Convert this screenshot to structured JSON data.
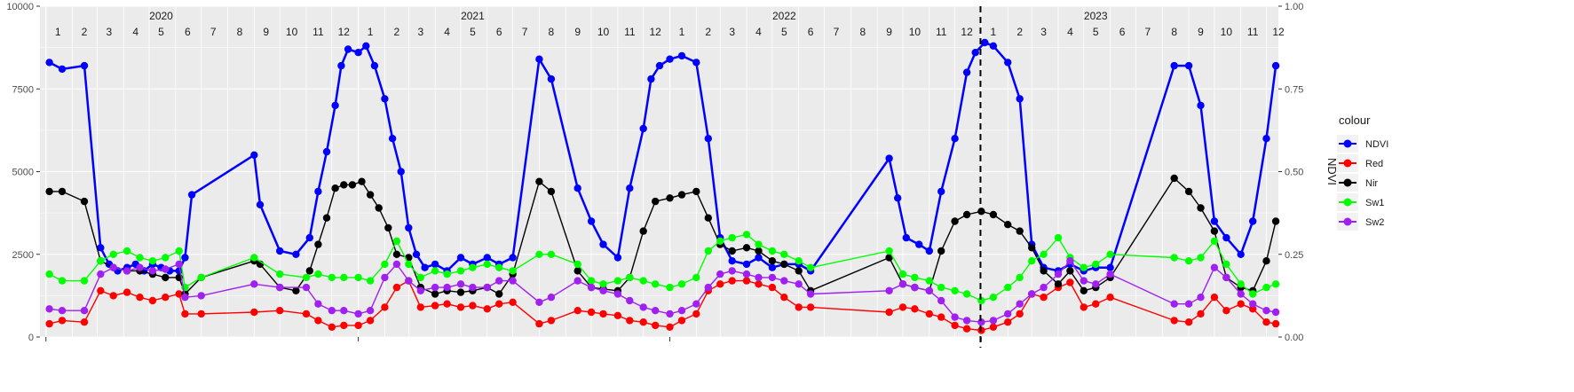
{
  "chart_data": {
    "type": "line",
    "xlabel": "",
    "ylabel_left": "",
    "ylabel_right": "NDVI",
    "y_left_lim": [
      0,
      10000
    ],
    "y_left_ticks": [
      "0",
      "2500",
      "5000",
      "7500",
      "10000"
    ],
    "y_right_lim": [
      0,
      1
    ],
    "y_right_ticks": [
      "0.00",
      "0.25",
      "0.50",
      "0.75",
      "1.00"
    ],
    "x_range": [
      "2019-12-25",
      "2023-12-15"
    ],
    "year_labels": [
      {
        "label": "2020",
        "date": "2020-05-15"
      },
      {
        "label": "2021",
        "date": "2021-05-15"
      },
      {
        "label": "2022",
        "date": "2022-05-15"
      },
      {
        "label": "2023",
        "date": "2023-05-15"
      }
    ],
    "month_labels": [
      "1",
      "2",
      "3",
      "4",
      "5",
      "6",
      "7",
      "8",
      "9",
      "10",
      "11",
      "12"
    ],
    "vline_date": "2022-12-31",
    "grid": true,
    "legend": {
      "title": "colour",
      "position": "right"
    },
    "series": [
      {
        "name": "NDVI",
        "color": "#0000FF",
        "axis": "right",
        "x": [
          "2020-01-05",
          "2020-01-20",
          "2020-02-15",
          "2020-03-05",
          "2020-03-15",
          "2020-03-25",
          "2020-04-05",
          "2020-04-15",
          "2020-04-25",
          "2020-05-05",
          "2020-05-15",
          "2020-05-25",
          "2020-06-05",
          "2020-06-12",
          "2020-06-20",
          "2020-09-01",
          "2020-09-08",
          "2020-10-01",
          "2020-10-20",
          "2020-11-05",
          "2020-11-15",
          "2020-11-25",
          "2020-12-05",
          "2020-12-12",
          "2020-12-20",
          "2021-01-01",
          "2021-01-10",
          "2021-01-20",
          "2021-02-01",
          "2021-02-10",
          "2021-02-20",
          "2021-03-01",
          "2021-03-10",
          "2021-03-20",
          "2021-04-01",
          "2021-04-15",
          "2021-05-01",
          "2021-05-15",
          "2021-06-01",
          "2021-06-15",
          "2021-07-01",
          "2021-08-01",
          "2021-08-15",
          "2021-09-15",
          "2021-10-01",
          "2021-10-15",
          "2021-11-01",
          "2021-11-15",
          "2021-12-01",
          "2021-12-10",
          "2021-12-20",
          "2022-01-01",
          "2022-01-15",
          "2022-02-01",
          "2022-02-15",
          "2022-03-01",
          "2022-03-15",
          "2022-04-01",
          "2022-04-15",
          "2022-05-01",
          "2022-05-15",
          "2022-06-01",
          "2022-06-15",
          "2022-09-15",
          "2022-09-25",
          "2022-10-05",
          "2022-10-20",
          "2022-11-01",
          "2022-11-15",
          "2022-12-01",
          "2022-12-15",
          "2022-12-25",
          "2023-01-05",
          "2023-01-15",
          "2023-02-01",
          "2023-02-15",
          "2023-03-01",
          "2023-03-15",
          "2023-04-01",
          "2023-04-15",
          "2023-05-01",
          "2023-05-15",
          "2023-06-01",
          "2023-08-15",
          "2023-09-01",
          "2023-09-15",
          "2023-10-01",
          "2023-10-15",
          "2023-11-01",
          "2023-11-15",
          "2023-12-01",
          "2023-12-12"
        ],
        "values": [
          0.83,
          0.81,
          0.82,
          0.27,
          0.22,
          0.2,
          0.21,
          0.22,
          0.2,
          0.22,
          0.21,
          0.2,
          0.2,
          0.24,
          0.43,
          0.55,
          0.4,
          0.26,
          0.25,
          0.3,
          0.44,
          0.56,
          0.7,
          0.82,
          0.87,
          0.86,
          0.88,
          0.82,
          0.72,
          0.6,
          0.5,
          0.33,
          0.25,
          0.21,
          0.22,
          0.2,
          0.24,
          0.22,
          0.24,
          0.22,
          0.24,
          0.84,
          0.78,
          0.45,
          0.35,
          0.28,
          0.24,
          0.45,
          0.63,
          0.78,
          0.82,
          0.84,
          0.85,
          0.83,
          0.6,
          0.3,
          0.23,
          0.22,
          0.24,
          0.21,
          0.22,
          0.22,
          0.2,
          0.54,
          0.42,
          0.3,
          0.28,
          0.26,
          0.44,
          0.6,
          0.8,
          0.86,
          0.89,
          0.88,
          0.83,
          0.72,
          0.28,
          0.21,
          0.2,
          0.22,
          0.2,
          0.21,
          0.21,
          0.82,
          0.82,
          0.7,
          0.35,
          0.3,
          0.25,
          0.35,
          0.6,
          0.82
        ]
      },
      {
        "name": "Red",
        "color": "#FF0000",
        "axis": "left",
        "x": [
          "2020-01-05",
          "2020-01-20",
          "2020-02-15",
          "2020-03-05",
          "2020-03-20",
          "2020-04-05",
          "2020-04-20",
          "2020-05-05",
          "2020-05-20",
          "2020-06-05",
          "2020-06-12",
          "2020-07-01",
          "2020-09-01",
          "2020-10-01",
          "2020-11-01",
          "2020-11-15",
          "2020-12-01",
          "2020-12-15",
          "2021-01-01",
          "2021-01-15",
          "2021-02-01",
          "2021-02-15",
          "2021-03-01",
          "2021-03-15",
          "2021-04-01",
          "2021-04-15",
          "2021-05-01",
          "2021-05-15",
          "2021-06-01",
          "2021-06-15",
          "2021-07-01",
          "2021-08-01",
          "2021-08-15",
          "2021-09-15",
          "2021-10-01",
          "2021-10-15",
          "2021-11-01",
          "2021-11-15",
          "2021-12-01",
          "2021-12-15",
          "2022-01-01",
          "2022-01-15",
          "2022-02-01",
          "2022-02-15",
          "2022-03-01",
          "2022-03-15",
          "2022-04-01",
          "2022-04-15",
          "2022-05-01",
          "2022-05-15",
          "2022-06-01",
          "2022-06-15",
          "2022-09-15",
          "2022-10-01",
          "2022-10-15",
          "2022-11-01",
          "2022-11-15",
          "2022-12-01",
          "2022-12-15",
          "2023-01-01",
          "2023-01-15",
          "2023-02-01",
          "2023-02-15",
          "2023-03-01",
          "2023-03-15",
          "2023-04-01",
          "2023-04-15",
          "2023-05-01",
          "2023-05-15",
          "2023-06-01",
          "2023-08-15",
          "2023-09-01",
          "2023-09-15",
          "2023-10-01",
          "2023-10-15",
          "2023-11-01",
          "2023-11-15",
          "2023-12-01",
          "2023-12-12"
        ],
        "values": [
          400,
          500,
          450,
          1400,
          1250,
          1350,
          1200,
          1100,
          1200,
          1300,
          700,
          700,
          750,
          800,
          700,
          500,
          300,
          350,
          350,
          500,
          900,
          1500,
          1700,
          900,
          950,
          1000,
          900,
          950,
          850,
          1000,
          1050,
          400,
          500,
          800,
          750,
          700,
          650,
          500,
          450,
          350,
          300,
          500,
          700,
          1400,
          1600,
          1700,
          1700,
          1600,
          1500,
          1200,
          900,
          900,
          750,
          900,
          850,
          700,
          600,
          350,
          250,
          200,
          300,
          450,
          700,
          1300,
          1200,
          1500,
          1650,
          900,
          1000,
          1200,
          500,
          450,
          700,
          1200,
          800,
          1000,
          850,
          450,
          400
        ]
      },
      {
        "name": "Nir",
        "color": "#000000",
        "axis": "left",
        "x": [
          "2020-01-05",
          "2020-01-20",
          "2020-02-15",
          "2020-03-05",
          "2020-03-20",
          "2020-04-05",
          "2020-04-20",
          "2020-05-05",
          "2020-05-20",
          "2020-06-05",
          "2020-06-12",
          "2020-07-01",
          "2020-09-01",
          "2020-09-08",
          "2020-10-01",
          "2020-10-20",
          "2020-11-05",
          "2020-11-15",
          "2020-11-25",
          "2020-12-05",
          "2020-12-15",
          "2020-12-25",
          "2021-01-05",
          "2021-01-15",
          "2021-01-25",
          "2021-02-05",
          "2021-02-15",
          "2021-03-01",
          "2021-03-15",
          "2021-04-01",
          "2021-04-15",
          "2021-05-01",
          "2021-05-15",
          "2021-06-01",
          "2021-06-15",
          "2021-07-01",
          "2021-08-01",
          "2021-08-15",
          "2021-09-15",
          "2021-10-01",
          "2021-10-15",
          "2021-11-01",
          "2021-11-15",
          "2021-12-01",
          "2021-12-15",
          "2022-01-01",
          "2022-01-15",
          "2022-02-01",
          "2022-02-15",
          "2022-03-01",
          "2022-03-15",
          "2022-04-01",
          "2022-04-15",
          "2022-05-01",
          "2022-05-15",
          "2022-06-01",
          "2022-06-15",
          "2022-09-15",
          "2022-10-01",
          "2022-10-15",
          "2022-11-01",
          "2022-11-15",
          "2022-12-01",
          "2022-12-15",
          "2023-01-01",
          "2023-01-15",
          "2023-02-01",
          "2023-02-15",
          "2023-03-01",
          "2023-03-15",
          "2023-04-01",
          "2023-04-15",
          "2023-05-01",
          "2023-05-15",
          "2023-06-01",
          "2023-08-15",
          "2023-09-01",
          "2023-09-15",
          "2023-10-01",
          "2023-10-15",
          "2023-11-01",
          "2023-11-15",
          "2023-12-01",
          "2023-12-12"
        ],
        "values": [
          4400,
          4400,
          4100,
          2300,
          2100,
          2000,
          2000,
          1900,
          1800,
          1800,
          1300,
          1800,
          2300,
          2200,
          1500,
          1400,
          2000,
          2800,
          3600,
          4500,
          4600,
          4600,
          4700,
          4300,
          3900,
          3300,
          2500,
          2400,
          1500,
          1300,
          1400,
          1350,
          1400,
          1500,
          1300,
          1900,
          4700,
          4400,
          2000,
          1500,
          1450,
          1400,
          1800,
          3200,
          4100,
          4200,
          4300,
          4400,
          3600,
          2800,
          2600,
          2700,
          2600,
          2300,
          2200,
          2000,
          1400,
          2400,
          1600,
          1500,
          1400,
          2600,
          3500,
          3700,
          3800,
          3700,
          3400,
          3200,
          2700,
          2000,
          1600,
          2000,
          1400,
          1500,
          1800,
          4800,
          4400,
          3900,
          3200,
          1800,
          1500,
          1400,
          2300,
          3500
        ]
      },
      {
        "name": "Sw1",
        "color": "#00FF00",
        "axis": "left",
        "x": [
          "2020-01-05",
          "2020-01-20",
          "2020-02-15",
          "2020-03-05",
          "2020-03-20",
          "2020-04-05",
          "2020-04-20",
          "2020-05-05",
          "2020-05-20",
          "2020-06-05",
          "2020-06-12",
          "2020-07-01",
          "2020-09-01",
          "2020-10-01",
          "2020-11-01",
          "2020-11-15",
          "2020-12-01",
          "2020-12-15",
          "2021-01-01",
          "2021-01-15",
          "2021-02-01",
          "2021-02-15",
          "2021-03-01",
          "2021-03-15",
          "2021-04-01",
          "2021-04-15",
          "2021-05-01",
          "2021-05-15",
          "2021-06-01",
          "2021-06-15",
          "2021-07-01",
          "2021-08-01",
          "2021-08-15",
          "2021-09-15",
          "2021-10-01",
          "2021-10-15",
          "2021-11-01",
          "2021-11-15",
          "2021-12-01",
          "2021-12-15",
          "2022-01-01",
          "2022-01-15",
          "2022-02-01",
          "2022-02-15",
          "2022-03-01",
          "2022-03-15",
          "2022-04-01",
          "2022-04-15",
          "2022-05-01",
          "2022-05-15",
          "2022-06-01",
          "2022-06-15",
          "2022-09-15",
          "2022-10-01",
          "2022-10-15",
          "2022-11-01",
          "2022-11-15",
          "2022-12-01",
          "2022-12-15",
          "2023-01-01",
          "2023-01-15",
          "2023-02-01",
          "2023-02-15",
          "2023-03-01",
          "2023-03-15",
          "2023-04-01",
          "2023-04-15",
          "2023-05-01",
          "2023-05-15",
          "2023-06-01",
          "2023-08-15",
          "2023-09-01",
          "2023-09-15",
          "2023-10-01",
          "2023-10-15",
          "2023-11-01",
          "2023-11-15",
          "2023-12-01",
          "2023-12-12"
        ],
        "values": [
          1900,
          1700,
          1700,
          2300,
          2500,
          2600,
          2400,
          2300,
          2400,
          2600,
          1500,
          1800,
          2400,
          1900,
          1800,
          1900,
          1800,
          1800,
          1800,
          1700,
          2200,
          2900,
          2200,
          1800,
          2000,
          1900,
          2000,
          2100,
          2200,
          2100,
          2000,
          2500,
          2500,
          2200,
          1700,
          1600,
          1700,
          1800,
          1700,
          1600,
          1500,
          1600,
          1800,
          2600,
          2900,
          3000,
          3100,
          2800,
          2600,
          2500,
          2300,
          2100,
          2600,
          1900,
          1800,
          1700,
          1500,
          1400,
          1300,
          1100,
          1200,
          1500,
          1800,
          2300,
          2500,
          3000,
          2400,
          2100,
          2200,
          2500,
          2400,
          2300,
          2400,
          2900,
          2200,
          1600,
          1300,
          1500,
          1600
        ]
      },
      {
        "name": "Sw2",
        "color": "#A020F0",
        "axis": "left",
        "x": [
          "2020-01-05",
          "2020-01-20",
          "2020-02-15",
          "2020-03-05",
          "2020-03-20",
          "2020-04-05",
          "2020-04-20",
          "2020-05-05",
          "2020-05-20",
          "2020-06-05",
          "2020-06-12",
          "2020-07-01",
          "2020-09-01",
          "2020-10-01",
          "2020-11-01",
          "2020-11-15",
          "2020-12-01",
          "2020-12-15",
          "2021-01-01",
          "2021-01-15",
          "2021-02-01",
          "2021-02-15",
          "2021-03-01",
          "2021-03-15",
          "2021-04-01",
          "2021-04-15",
          "2021-05-01",
          "2021-05-15",
          "2021-06-01",
          "2021-06-15",
          "2021-07-01",
          "2021-08-01",
          "2021-08-15",
          "2021-09-15",
          "2021-10-01",
          "2021-10-15",
          "2021-11-01",
          "2021-11-15",
          "2021-12-01",
          "2021-12-15",
          "2022-01-01",
          "2022-01-15",
          "2022-02-01",
          "2022-02-15",
          "2022-03-01",
          "2022-03-15",
          "2022-04-01",
          "2022-04-15",
          "2022-05-01",
          "2022-05-15",
          "2022-06-01",
          "2022-06-15",
          "2022-09-15",
          "2022-10-01",
          "2022-10-15",
          "2022-11-01",
          "2022-11-15",
          "2022-12-01",
          "2022-12-15",
          "2023-01-01",
          "2023-01-15",
          "2023-02-01",
          "2023-02-15",
          "2023-03-01",
          "2023-03-15",
          "2023-04-01",
          "2023-04-15",
          "2023-05-01",
          "2023-05-15",
          "2023-06-01",
          "2023-08-15",
          "2023-09-01",
          "2023-09-15",
          "2023-10-01",
          "2023-10-15",
          "2023-11-01",
          "2023-11-15",
          "2023-12-01",
          "2023-12-12"
        ],
        "values": [
          850,
          800,
          800,
          1900,
          2100,
          2000,
          2100,
          2000,
          2050,
          2200,
          1200,
          1250,
          1600,
          1500,
          1500,
          1000,
          800,
          800,
          700,
          800,
          1800,
          2200,
          1700,
          1400,
          1500,
          1500,
          1600,
          1500,
          1500,
          1700,
          1700,
          1050,
          1200,
          1700,
          1500,
          1400,
          1300,
          1100,
          900,
          800,
          700,
          800,
          1000,
          1500,
          1900,
          2000,
          1900,
          1800,
          1800,
          1700,
          1600,
          1300,
          1400,
          1600,
          1500,
          1400,
          1100,
          600,
          500,
          450,
          500,
          700,
          1000,
          1300,
          1500,
          1900,
          2300,
          1700,
          1600,
          1900,
          1000,
          1000,
          1200,
          2100,
          1800,
          1300,
          1000,
          800,
          750
        ]
      }
    ]
  }
}
